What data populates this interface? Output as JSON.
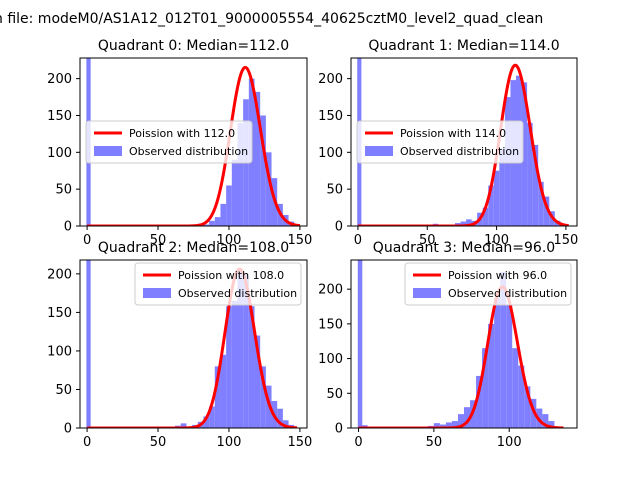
{
  "figure": {
    "title": "n file: modeM0/AS1A12_012T01_9000005554_40625cztM0_level2_quad_clean"
  },
  "colors": {
    "hist": "#7f7fff",
    "poisson": "#ff0000",
    "axes": "#000000"
  },
  "chart_data": [
    {
      "type": "bar",
      "title": "Quadrant 0: Median=112.0",
      "median": 112.0,
      "xlim": [
        -5,
        155
      ],
      "ylim": [
        0,
        228
      ],
      "xticks": [
        0,
        50,
        100,
        150
      ],
      "yticks": [
        0,
        50,
        100,
        150,
        200
      ],
      "legend": {
        "position": "center-left",
        "entries": [
          "Poission with 112.0",
          "Observed distribution"
        ]
      },
      "series": [
        {
          "name": "Poission with 112.0",
          "kind": "line",
          "mu": 112.0,
          "peak": 215,
          "x_start": 0,
          "x_end": 150
        },
        {
          "name": "Observed distribution",
          "kind": "hist",
          "bins": [
            {
              "x": -0.5,
              "w": 3,
              "y": 228
            },
            {
              "x": 52,
              "w": 4,
              "y": 1
            },
            {
              "x": 60,
              "w": 4,
              "y": 1
            },
            {
              "x": 70,
              "w": 4,
              "y": 2
            },
            {
              "x": 74,
              "w": 4,
              "y": 1
            },
            {
              "x": 78,
              "w": 4,
              "y": 3
            },
            {
              "x": 82,
              "w": 4,
              "y": 2
            },
            {
              "x": 86,
              "w": 4,
              "y": 7
            },
            {
              "x": 90,
              "w": 4,
              "y": 12
            },
            {
              "x": 94,
              "w": 4,
              "y": 30
            },
            {
              "x": 98,
              "w": 4,
              "y": 55
            },
            {
              "x": 102,
              "w": 4,
              "y": 90
            },
            {
              "x": 106,
              "w": 4,
              "y": 140
            },
            {
              "x": 110,
              "w": 4,
              "y": 172
            },
            {
              "x": 114,
              "w": 4,
              "y": 200
            },
            {
              "x": 118,
              "w": 4,
              "y": 182
            },
            {
              "x": 122,
              "w": 4,
              "y": 150
            },
            {
              "x": 126,
              "w": 4,
              "y": 100
            },
            {
              "x": 130,
              "w": 4,
              "y": 65
            },
            {
              "x": 134,
              "w": 4,
              "y": 30
            },
            {
              "x": 138,
              "w": 4,
              "y": 15
            },
            {
              "x": 142,
              "w": 4,
              "y": 6
            },
            {
              "x": 146,
              "w": 4,
              "y": 2
            }
          ]
        }
      ]
    },
    {
      "type": "bar",
      "title": "Quadrant 1: Median=114.0",
      "median": 114.0,
      "xlim": [
        -5,
        158
      ],
      "ylim": [
        0,
        228
      ],
      "xticks": [
        0,
        50,
        100,
        150
      ],
      "yticks": [
        0,
        50,
        100,
        150,
        200
      ],
      "legend": {
        "position": "center-left",
        "entries": [
          "Poission with 114.0",
          "Observed distribution"
        ]
      },
      "series": [
        {
          "name": "Poission with 114.0",
          "kind": "line",
          "mu": 114.0,
          "peak": 218,
          "x_start": 0,
          "x_end": 152
        },
        {
          "name": "Observed distribution",
          "kind": "hist",
          "bins": [
            {
              "x": -0.5,
              "w": 3,
              "y": 228
            },
            {
              "x": 54,
              "w": 4,
              "y": 3
            },
            {
              "x": 62,
              "w": 4,
              "y": 2
            },
            {
              "x": 70,
              "w": 4,
              "y": 4
            },
            {
              "x": 74,
              "w": 4,
              "y": 6
            },
            {
              "x": 78,
              "w": 4,
              "y": 9
            },
            {
              "x": 82,
              "w": 4,
              "y": 7
            },
            {
              "x": 86,
              "w": 4,
              "y": 18
            },
            {
              "x": 90,
              "w": 4,
              "y": 25
            },
            {
              "x": 94,
              "w": 4,
              "y": 55
            },
            {
              "x": 98,
              "w": 4,
              "y": 75
            },
            {
              "x": 102,
              "w": 4,
              "y": 105
            },
            {
              "x": 106,
              "w": 4,
              "y": 175
            },
            {
              "x": 110,
              "w": 4,
              "y": 198
            },
            {
              "x": 114,
              "w": 4,
              "y": 204
            },
            {
              "x": 118,
              "w": 4,
              "y": 195
            },
            {
              "x": 122,
              "w": 4,
              "y": 140
            },
            {
              "x": 126,
              "w": 4,
              "y": 110
            },
            {
              "x": 130,
              "w": 4,
              "y": 60
            },
            {
              "x": 134,
              "w": 4,
              "y": 40
            },
            {
              "x": 138,
              "w": 4,
              "y": 20
            },
            {
              "x": 142,
              "w": 4,
              "y": 7
            },
            {
              "x": 146,
              "w": 4,
              "y": 3
            }
          ]
        }
      ]
    },
    {
      "type": "bar",
      "title": "Quadrant 2: Median=108.0",
      "median": 108.0,
      "xlim": [
        -5,
        155
      ],
      "ylim": [
        0,
        218
      ],
      "xticks": [
        0,
        50,
        100,
        150
      ],
      "yticks": [
        0,
        50,
        100,
        150,
        200
      ],
      "legend": {
        "position": "upper-right",
        "entries": [
          "Poission with 108.0",
          "Observed distribution"
        ]
      },
      "series": [
        {
          "name": "Poission with 108.0",
          "kind": "line",
          "mu": 108.0,
          "peak": 206,
          "x_start": 0,
          "x_end": 148
        },
        {
          "name": "Observed distribution",
          "kind": "hist",
          "bins": [
            {
              "x": -0.5,
              "w": 3,
              "y": 218
            },
            {
              "x": 50,
              "w": 4,
              "y": 1
            },
            {
              "x": 62,
              "w": 4,
              "y": 3
            },
            {
              "x": 66,
              "w": 4,
              "y": 6
            },
            {
              "x": 70,
              "w": 4,
              "y": 2
            },
            {
              "x": 74,
              "w": 4,
              "y": 4
            },
            {
              "x": 78,
              "w": 4,
              "y": 8
            },
            {
              "x": 82,
              "w": 4,
              "y": 15
            },
            {
              "x": 86,
              "w": 4,
              "y": 28
            },
            {
              "x": 90,
              "w": 4,
              "y": 80
            },
            {
              "x": 94,
              "w": 4,
              "y": 95
            },
            {
              "x": 98,
              "w": 4,
              "y": 158
            },
            {
              "x": 102,
              "w": 4,
              "y": 165
            },
            {
              "x": 106,
              "w": 4,
              "y": 203
            },
            {
              "x": 110,
              "w": 4,
              "y": 200
            },
            {
              "x": 114,
              "w": 4,
              "y": 158
            },
            {
              "x": 118,
              "w": 4,
              "y": 120
            },
            {
              "x": 122,
              "w": 4,
              "y": 80
            },
            {
              "x": 126,
              "w": 4,
              "y": 55
            },
            {
              "x": 130,
              "w": 4,
              "y": 35
            },
            {
              "x": 134,
              "w": 4,
              "y": 25
            },
            {
              "x": 138,
              "w": 4,
              "y": 10
            },
            {
              "x": 142,
              "w": 4,
              "y": 4
            }
          ]
        }
      ]
    },
    {
      "type": "bar",
      "title": "Quadrant 3: Median=96.0",
      "median": 96.0,
      "xlim": [
        -5,
        145
      ],
      "ylim": [
        0,
        242
      ],
      "xticks": [
        0,
        50,
        100
      ],
      "yticks": [
        0,
        50,
        100,
        150,
        200
      ],
      "legend": {
        "position": "upper-right",
        "entries": [
          "Poission with 96.0",
          "Observed distribution"
        ]
      },
      "series": [
        {
          "name": "Poission with 96.0",
          "kind": "line",
          "mu": 96.0,
          "peak": 203,
          "x_start": 0,
          "x_end": 136
        },
        {
          "name": "Observed distribution",
          "kind": "hist",
          "bins": [
            {
              "x": -0.5,
              "w": 3,
              "y": 242
            },
            {
              "x": 2,
              "w": 4,
              "y": 4
            },
            {
              "x": 10,
              "w": 4,
              "y": 1
            },
            {
              "x": 30,
              "w": 4,
              "y": 1
            },
            {
              "x": 46,
              "w": 4,
              "y": 3
            },
            {
              "x": 50,
              "w": 4,
              "y": 7
            },
            {
              "x": 54,
              "w": 4,
              "y": 5
            },
            {
              "x": 58,
              "w": 4,
              "y": 8
            },
            {
              "x": 62,
              "w": 4,
              "y": 10
            },
            {
              "x": 66,
              "w": 4,
              "y": 20
            },
            {
              "x": 70,
              "w": 4,
              "y": 30
            },
            {
              "x": 74,
              "w": 4,
              "y": 40
            },
            {
              "x": 78,
              "w": 4,
              "y": 75
            },
            {
              "x": 82,
              "w": 4,
              "y": 115
            },
            {
              "x": 86,
              "w": 4,
              "y": 150
            },
            {
              "x": 90,
              "w": 4,
              "y": 188
            },
            {
              "x": 94,
              "w": 4,
              "y": 225
            },
            {
              "x": 98,
              "w": 4,
              "y": 178
            },
            {
              "x": 102,
              "w": 4,
              "y": 115
            },
            {
              "x": 106,
              "w": 4,
              "y": 90
            },
            {
              "x": 110,
              "w": 4,
              "y": 60
            },
            {
              "x": 114,
              "w": 4,
              "y": 42
            },
            {
              "x": 118,
              "w": 4,
              "y": 28
            },
            {
              "x": 122,
              "w": 4,
              "y": 20
            },
            {
              "x": 126,
              "w": 4,
              "y": 10
            }
          ]
        }
      ]
    }
  ]
}
